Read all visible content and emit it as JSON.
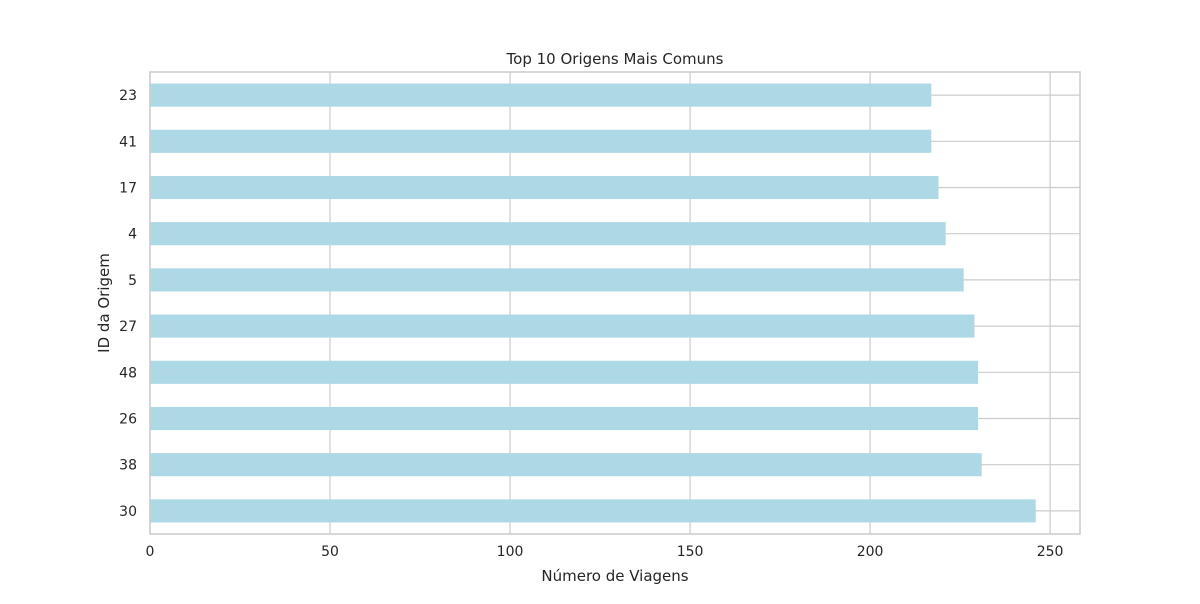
{
  "chart_data": {
    "type": "bar",
    "orientation": "horizontal",
    "title": "Top 10 Origens Mais Comuns",
    "xlabel": "Número de Viagens",
    "ylabel": "ID da Origem",
    "categories": [
      "30",
      "38",
      "26",
      "48",
      "27",
      "5",
      "4",
      "17",
      "41",
      "23"
    ],
    "values": [
      246,
      231,
      230,
      230,
      229,
      226,
      221,
      219,
      217,
      217
    ],
    "xlim": [
      0,
      258.3
    ],
    "xticks": [
      0,
      50,
      100,
      150,
      200,
      250
    ],
    "xtick_labels": [
      "0",
      "50",
      "100",
      "150",
      "200",
      "250"
    ],
    "grid": true,
    "bar_color": "#add8e6"
  }
}
